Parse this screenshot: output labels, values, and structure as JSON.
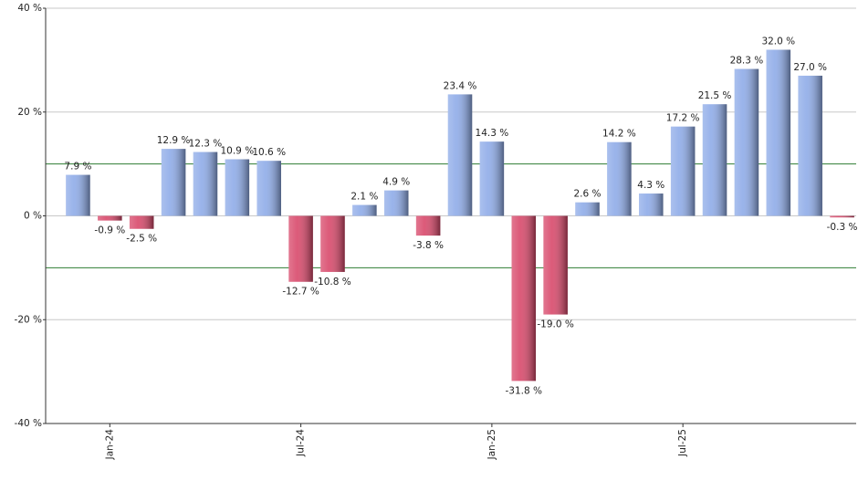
{
  "chart_data": {
    "type": "bar",
    "categories": [
      null,
      "Jan-24",
      null,
      null,
      null,
      null,
      null,
      "Jul-24",
      null,
      null,
      null,
      null,
      null,
      "Jan-25",
      null,
      null,
      null,
      null,
      null,
      "Jul-25",
      null,
      null,
      null,
      null,
      null
    ],
    "values": [
      7.9,
      -0.9,
      -2.5,
      12.9,
      12.3,
      10.9,
      10.6,
      -12.7,
      -10.8,
      2.1,
      4.9,
      -3.8,
      23.4,
      14.3,
      -31.8,
      -19.0,
      2.6,
      14.2,
      4.3,
      17.2,
      21.5,
      28.3,
      32.0,
      27.0,
      -0.3
    ],
    "value_labels": [
      "7.9 %",
      "-0.9 %",
      "-2.5 %",
      "12.9 %",
      "12.3 %",
      "10.9 %",
      "10.6 %",
      "-12.7 %",
      "-10.8 %",
      "2.1 %",
      "4.9 %",
      "-3.8 %",
      "23.4 %",
      "14.3 %",
      "-31.8 %",
      "-19.0 %",
      "2.6 %",
      "14.2 %",
      "4.3 %",
      "17.2 %",
      "21.5 %",
      "28.3 %",
      "32.0 %",
      "27.0 %",
      "-0.3 %"
    ],
    "ylim": [
      -40,
      40
    ],
    "yticks": [
      {
        "value": -40,
        "label": "-40 %"
      },
      {
        "value": -20,
        "label": "-20 %"
      },
      {
        "value": 0,
        "label": "0 %"
      },
      {
        "value": 20,
        "label": "20 %"
      },
      {
        "value": 40,
        "label": "40 %"
      }
    ],
    "grid": true,
    "reference_lines": [
      10,
      -10
    ],
    "reference_color": "#2e7d32",
    "positive_color": "#8eabe8",
    "negative_color": "#d8486a"
  }
}
